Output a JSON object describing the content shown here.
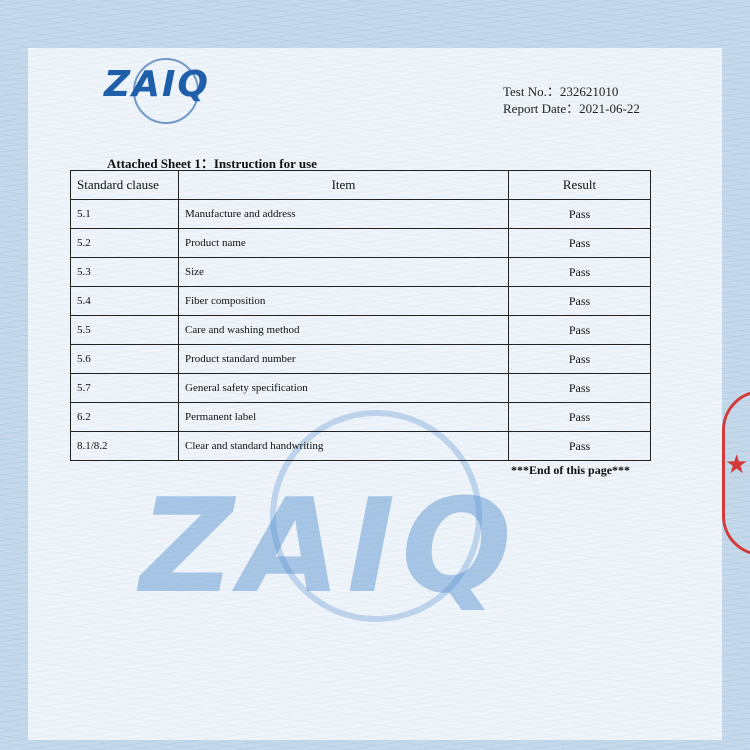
{
  "header": {
    "logo": "ZAIQ",
    "test_no": "Test No.：232621010",
    "report_date": "Report Date：2021-06-22"
  },
  "table": {
    "title": "Attached Sheet 1：Instruction for use",
    "columns": [
      "Standard clause",
      "Item",
      "Result"
    ],
    "rows": [
      [
        "5.1",
        "Manufacture and address",
        "Pass"
      ],
      [
        "5.2",
        "Product name",
        "Pass"
      ],
      [
        "5.3",
        "Size",
        "Pass"
      ],
      [
        "5.4",
        "Fiber composition",
        "Pass"
      ],
      [
        "5.5",
        "Care and washing method",
        "Pass"
      ],
      [
        "5.6",
        "Product standard number",
        "Pass"
      ],
      [
        "5.7",
        "General safety specification",
        "Pass"
      ],
      [
        "6.2",
        "Permanent label",
        "Pass"
      ],
      [
        "8.1/8.2",
        "Clear and standard handwriting",
        "Pass"
      ]
    ]
  },
  "footer": {
    "end_note": "***End of this page***"
  },
  "watermark": "ZAIQ"
}
